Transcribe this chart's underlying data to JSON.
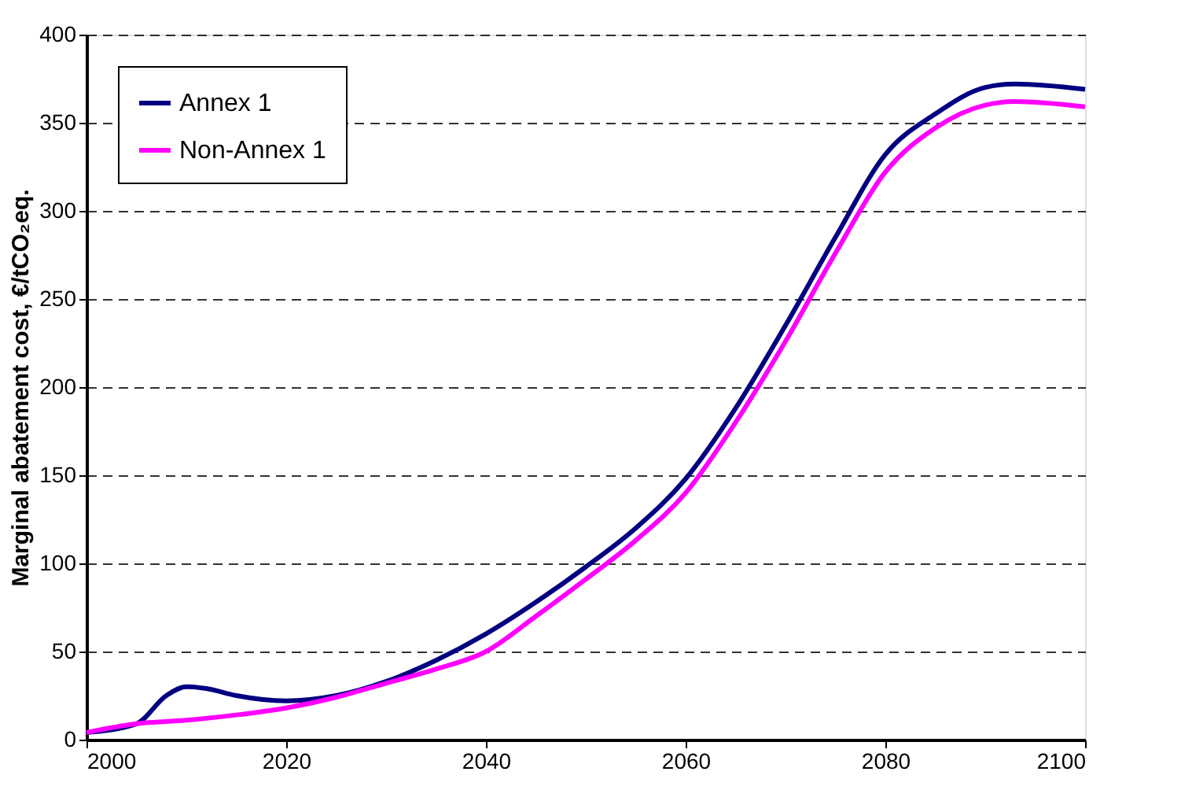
{
  "chart_data": {
    "type": "line",
    "ylabel": "Marginal abatement cost, €/tCO₂eq.",
    "xlim": [
      2000,
      2100
    ],
    "xticks": [
      2000,
      2020,
      2040,
      2060,
      2080,
      2100
    ],
    "ylim": [
      0,
      400
    ],
    "yticks": [
      0,
      50,
      100,
      150,
      200,
      250,
      300,
      350,
      400
    ],
    "grid": "y",
    "legend": "top left",
    "marker": "none",
    "line_style": "solid",
    "series": [
      {
        "name": "Annex 1",
        "color": "#000080",
        "x": [
          2000,
          2005,
          2008,
          2010,
          2012,
          2015,
          2020,
          2025,
          2030,
          2035,
          2040,
          2045,
          2050,
          2055,
          2060,
          2065,
          2070,
          2075,
          2080,
          2085,
          2090,
          2093,
          2100
        ],
        "values": [
          4,
          9,
          25,
          30,
          29,
          25,
          22,
          25,
          33,
          45,
          60,
          78,
          98,
          120,
          148,
          188,
          235,
          285,
          332,
          355,
          370,
          372,
          369
        ]
      },
      {
        "name": "Non-Annex 1",
        "color": "#ff00ff",
        "x": [
          2000,
          2005,
          2010,
          2015,
          2020,
          2025,
          2030,
          2035,
          2040,
          2045,
          2050,
          2055,
          2060,
          2065,
          2070,
          2075,
          2080,
          2085,
          2090,
          2093,
          2100
        ],
        "values": [
          4,
          9,
          11,
          14,
          18,
          24,
          32,
          40,
          50,
          70,
          91,
          113,
          140,
          180,
          226,
          276,
          322,
          347,
          360,
          362,
          359
        ]
      }
    ]
  }
}
